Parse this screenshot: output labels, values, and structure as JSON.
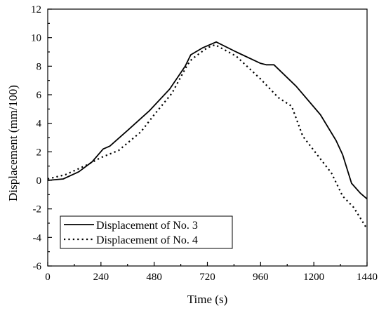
{
  "chart_data": {
    "type": "line",
    "xlabel": "Time (s)",
    "ylabel": "Displacement (mm/100)",
    "xlim": [
      0,
      1440
    ],
    "ylim": [
      -6,
      12
    ],
    "x_ticks": [
      "0",
      "240",
      "480",
      "720",
      "960",
      "1200",
      "1440"
    ],
    "y_ticks": [
      "-6",
      "-4",
      "-2",
      "0",
      "2",
      "4",
      "6",
      "8",
      "10",
      "12"
    ],
    "x_tick_values": [
      0,
      240,
      480,
      720,
      960,
      1200,
      1440
    ],
    "y_tick_values": [
      -6,
      -4,
      -2,
      0,
      2,
      4,
      6,
      8,
      10,
      12
    ],
    "legend_position": "bottom-left",
    "grid": false,
    "series": [
      {
        "name": "Displacement of  No. 3",
        "style": "solid",
        "color": "#000000",
        "points": [
          [
            0,
            0.0
          ],
          [
            70,
            0.1
          ],
          [
            140,
            0.6
          ],
          [
            200,
            1.3
          ],
          [
            250,
            2.2
          ],
          [
            280,
            2.4
          ],
          [
            360,
            3.5
          ],
          [
            460,
            4.9
          ],
          [
            550,
            6.4
          ],
          [
            620,
            8.0
          ],
          [
            645,
            8.8
          ],
          [
            700,
            9.3
          ],
          [
            760,
            9.7
          ],
          [
            850,
            9.0
          ],
          [
            960,
            8.2
          ],
          [
            985,
            8.1
          ],
          [
            1020,
            8.1
          ],
          [
            1120,
            6.6
          ],
          [
            1230,
            4.6
          ],
          [
            1300,
            2.8
          ],
          [
            1330,
            1.8
          ],
          [
            1370,
            -0.2
          ],
          [
            1410,
            -0.9
          ],
          [
            1440,
            -1.3
          ]
        ]
      },
      {
        "name": "Displacement of  No. 4",
        "style": "dotted",
        "color": "#000000",
        "points": [
          [
            0,
            0.1
          ],
          [
            80,
            0.4
          ],
          [
            180,
            1.1
          ],
          [
            240,
            1.6
          ],
          [
            320,
            2.1
          ],
          [
            420,
            3.4
          ],
          [
            480,
            4.6
          ],
          [
            560,
            6.1
          ],
          [
            630,
            8.1
          ],
          [
            650,
            8.5
          ],
          [
            720,
            9.3
          ],
          [
            755,
            9.5
          ],
          [
            850,
            8.7
          ],
          [
            960,
            7.1
          ],
          [
            1040,
            5.8
          ],
          [
            1100,
            5.2
          ],
          [
            1150,
            3.1
          ],
          [
            1230,
            1.5
          ],
          [
            1280,
            0.5
          ],
          [
            1330,
            -1.1
          ],
          [
            1380,
            -1.9
          ],
          [
            1440,
            -3.4
          ]
        ]
      }
    ]
  }
}
